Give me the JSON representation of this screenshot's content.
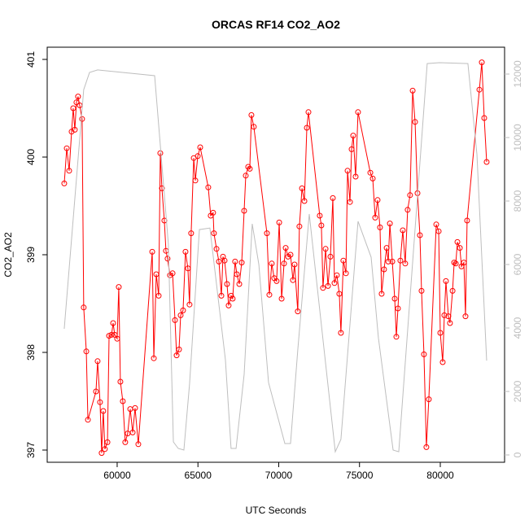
{
  "chart_data": {
    "type": "line",
    "title": "ORCAS RF14 CO2_AO2",
    "xlabel": "UTC Seconds",
    "ylabel": "CO2_AO2",
    "xlim": [
      55670,
      83980
    ],
    "xticks": [
      60000,
      65000,
      70000,
      75000,
      80000
    ],
    "ylim": [
      396.875,
      401.125
    ],
    "yticks": [
      397,
      398,
      399,
      400,
      401
    ],
    "y2lim": [
      -231,
      12846
    ],
    "y2ticks": [
      0,
      2000,
      4000,
      6000,
      8000,
      10000,
      12000
    ],
    "series": [
      {
        "color": "#ff0000",
        "marker": "circle",
        "x": [
          56725,
          56880,
          57030,
          57180,
          57280,
          57380,
          57480,
          57580,
          57680,
          57830,
          57930,
          58090,
          58190,
          58690,
          58790,
          58940,
          59040,
          59140,
          59240,
          59400,
          59500,
          59650,
          59750,
          59850,
          60000,
          60100,
          60200,
          60350,
          60500,
          60650,
          60810,
          60960,
          61110,
          61310,
          62170,
          62270,
          62420,
          62570,
          62670,
          62770,
          62920,
          63020,
          63120,
          63270,
          63430,
          63580,
          63680,
          63830,
          63930,
          64080,
          64230,
          64380,
          64480,
          64580,
          64740,
          64840,
          64990,
          65140,
          65640,
          65790,
          65940,
          65990,
          66150,
          66300,
          66450,
          66550,
          66650,
          66800,
          66900,
          67050,
          67150,
          67300,
          67410,
          67560,
          67710,
          67860,
          67960,
          68110,
          68210,
          68310,
          68460,
          69270,
          69420,
          69570,
          69720,
          69870,
          70030,
          70180,
          70330,
          70430,
          70580,
          70730,
          70880,
          70980,
          71180,
          71280,
          71440,
          71590,
          71740,
          71840,
          72540,
          72640,
          72740,
          72900,
          73050,
          73200,
          73350,
          73450,
          73600,
          73750,
          73850,
          74000,
          74160,
          74260,
          74410,
          74510,
          74610,
          74760,
          74910,
          75670,
          75820,
          75970,
          76120,
          76270,
          76370,
          76520,
          76680,
          76780,
          76880,
          77030,
          77180,
          77280,
          77380,
          77530,
          77680,
          77830,
          77980,
          78130,
          78290,
          78440,
          78590,
          78740,
          78840,
          78990,
          79140,
          79290,
          79750,
          79900,
          80000,
          80150,
          80250,
          80350,
          80500,
          80600,
          80760,
          80860,
          80960,
          81060,
          81210,
          81310,
          81460,
          81560,
          81660,
          82420,
          82570,
          82720,
          82870
        ],
        "values": [
          399.73,
          400.09,
          399.86,
          400.26,
          400.5,
          400.28,
          400.56,
          400.62,
          400.53,
          400.39,
          398.46,
          398.01,
          397.31,
          397.6,
          397.91,
          397.49,
          396.97,
          397.4,
          397.01,
          397.08,
          398.17,
          398.18,
          398.3,
          398.18,
          398.14,
          398.67,
          397.7,
          397.5,
          397.08,
          397.17,
          397.42,
          397.18,
          397.43,
          397.06,
          399.03,
          397.94,
          398.8,
          398.58,
          400.04,
          399.68,
          399.35,
          399.04,
          398.96,
          398.79,
          398.81,
          398.33,
          397.97,
          398.03,
          398.38,
          398.43,
          399.03,
          398.86,
          398.49,
          399.22,
          399.99,
          399.76,
          400.01,
          400.1,
          399.69,
          399.4,
          399.43,
          399.22,
          399.06,
          398.93,
          398.58,
          398.98,
          398.94,
          398.7,
          398.48,
          398.58,
          398.55,
          398.93,
          398.8,
          398.7,
          398.92,
          399.45,
          399.81,
          399.9,
          399.88,
          400.43,
          400.31,
          399.22,
          398.59,
          398.91,
          398.76,
          398.73,
          399.33,
          398.55,
          398.91,
          399.07,
          398.98,
          399.0,
          398.74,
          398.9,
          398.42,
          399.29,
          399.68,
          399.55,
          400.3,
          400.46,
          399.4,
          399.3,
          398.66,
          399.06,
          398.68,
          398.98,
          399.58,
          398.71,
          398.79,
          398.6,
          398.2,
          398.94,
          398.81,
          399.86,
          399.54,
          400.08,
          400.22,
          399.8,
          400.46,
          399.84,
          399.78,
          399.38,
          399.56,
          399.28,
          398.6,
          398.85,
          399.07,
          398.93,
          399.32,
          398.93,
          398.55,
          398.16,
          398.45,
          398.94,
          399.25,
          398.91,
          399.46,
          399.61,
          400.68,
          400.36,
          399.63,
          399.2,
          398.63,
          397.98,
          397.03,
          397.52,
          399.31,
          399.24,
          398.2,
          397.9,
          398.38,
          398.73,
          398.37,
          398.3,
          398.63,
          398.92,
          398.91,
          399.13,
          399.07,
          398.88,
          398.92,
          398.37,
          399.35,
          400.69,
          400.97,
          400.4,
          399.95
        ]
      },
      {
        "color": "#bebebe",
        "axis": "y2",
        "x": [
          56725,
          57930,
          58290,
          58790,
          62320,
          63170,
          63480,
          63780,
          64130,
          64480,
          65090,
          65740,
          66700,
          67050,
          67360,
          67860,
          68360,
          68770,
          69370,
          70380,
          70730,
          71180,
          71890,
          72590,
          73500,
          73850,
          74910,
          75720,
          76170,
          77080,
          77430,
          77780,
          79190,
          79950,
          81710,
          82270,
          82870
        ],
        "values": [
          3974,
          11510,
          12050,
          12130,
          11950,
          6640,
          410,
          205,
          154,
          2230,
          7100,
          7150,
          3000,
          205,
          205,
          2540,
          7280,
          6000,
          2280,
          360,
          360,
          3310,
          7590,
          4330,
          100,
          490,
          7360,
          6230,
          3690,
          154,
          100,
          2540,
          12330,
          12360,
          12330,
          9460,
          2970
        ]
      }
    ]
  }
}
